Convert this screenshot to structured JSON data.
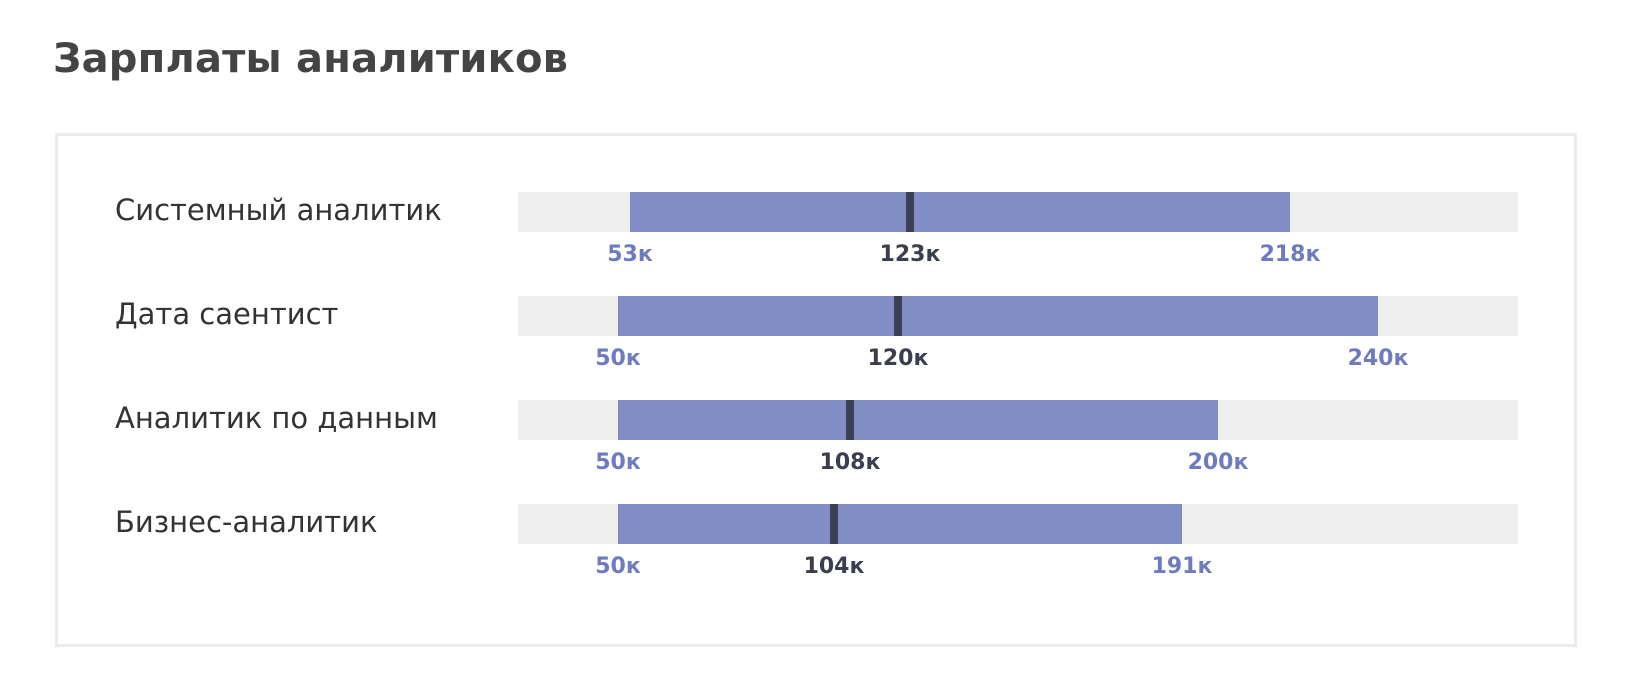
{
  "title": "Зарплаты аналитиков",
  "colors": {
    "range": "#818ec6",
    "track": "#efefef",
    "median": "#3b4057",
    "range_label": "#6f7bbf",
    "median_label": "#3b3f4d"
  },
  "chart_data": {
    "type": "bar",
    "title": "Зарплаты аналитиков",
    "unit_suffix": "к",
    "xlim": [
      25,
      275
    ],
    "categories": [
      "Системный аналитик",
      "Дата саентист",
      "Аналитик по данным",
      "Бизнес-аналитик"
    ],
    "rows": [
      {
        "name": "Системный аналитик",
        "min": 53,
        "median": 123,
        "max": 218,
        "min_label": "53к",
        "median_label": "123к",
        "max_label": "218к"
      },
      {
        "name": "Дата саентист",
        "min": 50,
        "median": 120,
        "max": 240,
        "min_label": "50к",
        "median_label": "120к",
        "max_label": "240к"
      },
      {
        "name": "Аналитик по данным",
        "min": 50,
        "median": 108,
        "max": 200,
        "min_label": "50к",
        "median_label": "108к",
        "max_label": "200к"
      },
      {
        "name": "Бизнес-аналитик",
        "min": 50,
        "median": 104,
        "max": 191,
        "min_label": "50к",
        "median_label": "104к",
        "max_label": "191к"
      }
    ]
  }
}
